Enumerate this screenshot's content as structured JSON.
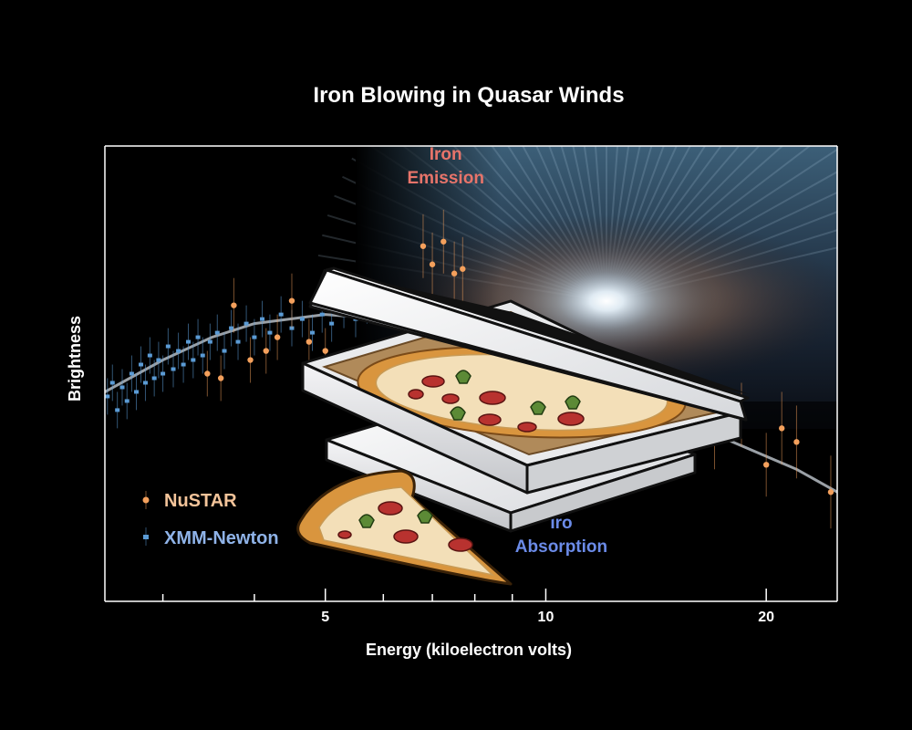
{
  "chart_data": {
    "type": "scatter",
    "title": "Iron Blowing in Quasar Winds",
    "xlabel": "Energy (kiloelectron volts)",
    "ylabel": "Brightness",
    "x_scale": "log",
    "xlim": [
      2.5,
      25
    ],
    "ylim": [
      0,
      1
    ],
    "x_ticks_labeled": [
      5,
      10,
      20
    ],
    "x_ticks_minor": [
      3,
      4,
      6,
      7,
      8,
      9
    ],
    "grid": false,
    "legend_position": "bottom-left",
    "series": [
      {
        "name": "NuSTAR",
        "color": "#f4a05c",
        "marker": "circle",
        "points": [
          {
            "x": 3.45,
            "y": 0.5,
            "err": 0.05
          },
          {
            "x": 3.6,
            "y": 0.49,
            "err": 0.05
          },
          {
            "x": 3.75,
            "y": 0.65,
            "err": 0.06
          },
          {
            "x": 3.95,
            "y": 0.53,
            "err": 0.05
          },
          {
            "x": 4.15,
            "y": 0.55,
            "err": 0.05
          },
          {
            "x": 4.3,
            "y": 0.58,
            "err": 0.05
          },
          {
            "x": 4.5,
            "y": 0.66,
            "err": 0.06
          },
          {
            "x": 4.75,
            "y": 0.57,
            "err": 0.05
          },
          {
            "x": 5.0,
            "y": 0.55,
            "err": 0.05
          },
          {
            "x": 6.8,
            "y": 0.78,
            "err": 0.07
          },
          {
            "x": 7.0,
            "y": 0.74,
            "err": 0.07
          },
          {
            "x": 7.25,
            "y": 0.79,
            "err": 0.07
          },
          {
            "x": 7.5,
            "y": 0.72,
            "err": 0.07
          },
          {
            "x": 7.7,
            "y": 0.73,
            "err": 0.07
          },
          {
            "x": 14.8,
            "y": 0.39,
            "err": 0.05
          },
          {
            "x": 17.0,
            "y": 0.35,
            "err": 0.06
          },
          {
            "x": 18.5,
            "y": 0.41,
            "err": 0.07
          },
          {
            "x": 20.0,
            "y": 0.3,
            "err": 0.07
          },
          {
            "x": 21.0,
            "y": 0.38,
            "err": 0.08
          },
          {
            "x": 22.0,
            "y": 0.35,
            "err": 0.08
          },
          {
            "x": 24.5,
            "y": 0.24,
            "err": 0.08
          }
        ]
      },
      {
        "name": "XMM-Newton",
        "color": "#5b9bd5",
        "marker": "square",
        "points": [
          {
            "x": 2.52,
            "y": 0.45,
            "err": 0.04
          },
          {
            "x": 2.56,
            "y": 0.48,
            "err": 0.04
          },
          {
            "x": 2.6,
            "y": 0.42,
            "err": 0.04
          },
          {
            "x": 2.64,
            "y": 0.47,
            "err": 0.04
          },
          {
            "x": 2.68,
            "y": 0.44,
            "err": 0.04
          },
          {
            "x": 2.72,
            "y": 0.5,
            "err": 0.04
          },
          {
            "x": 2.76,
            "y": 0.46,
            "err": 0.04
          },
          {
            "x": 2.8,
            "y": 0.52,
            "err": 0.04
          },
          {
            "x": 2.84,
            "y": 0.48,
            "err": 0.04
          },
          {
            "x": 2.88,
            "y": 0.54,
            "err": 0.04
          },
          {
            "x": 2.92,
            "y": 0.49,
            "err": 0.04
          },
          {
            "x": 2.96,
            "y": 0.53,
            "err": 0.04
          },
          {
            "x": 3.0,
            "y": 0.5,
            "err": 0.04
          },
          {
            "x": 3.05,
            "y": 0.56,
            "err": 0.04
          },
          {
            "x": 3.1,
            "y": 0.51,
            "err": 0.04
          },
          {
            "x": 3.15,
            "y": 0.55,
            "err": 0.04
          },
          {
            "x": 3.2,
            "y": 0.52,
            "err": 0.04
          },
          {
            "x": 3.25,
            "y": 0.57,
            "err": 0.04
          },
          {
            "x": 3.3,
            "y": 0.53,
            "err": 0.04
          },
          {
            "x": 3.35,
            "y": 0.58,
            "err": 0.04
          },
          {
            "x": 3.4,
            "y": 0.54,
            "err": 0.04
          },
          {
            "x": 3.48,
            "y": 0.57,
            "err": 0.04
          },
          {
            "x": 3.56,
            "y": 0.59,
            "err": 0.04
          },
          {
            "x": 3.64,
            "y": 0.55,
            "err": 0.04
          },
          {
            "x": 3.72,
            "y": 0.6,
            "err": 0.04
          },
          {
            "x": 3.8,
            "y": 0.57,
            "err": 0.04
          },
          {
            "x": 3.9,
            "y": 0.61,
            "err": 0.04
          },
          {
            "x": 4.0,
            "y": 0.58,
            "err": 0.04
          },
          {
            "x": 4.1,
            "y": 0.62,
            "err": 0.04
          },
          {
            "x": 4.2,
            "y": 0.59,
            "err": 0.04
          },
          {
            "x": 4.35,
            "y": 0.63,
            "err": 0.04
          },
          {
            "x": 4.5,
            "y": 0.6,
            "err": 0.04
          },
          {
            "x": 4.65,
            "y": 0.62,
            "err": 0.04
          },
          {
            "x": 4.8,
            "y": 0.59,
            "err": 0.04
          },
          {
            "x": 4.95,
            "y": 0.63,
            "err": 0.04
          },
          {
            "x": 5.1,
            "y": 0.61,
            "err": 0.04
          },
          {
            "x": 5.3,
            "y": 0.64,
            "err": 0.04
          },
          {
            "x": 5.5,
            "y": 0.62,
            "err": 0.04
          },
          {
            "x": 5.7,
            "y": 0.65,
            "err": 0.04
          }
        ]
      },
      {
        "name": "",
        "color": "#9aa0a6",
        "marker": "line",
        "points": [
          {
            "x": 2.5,
            "y": 0.46
          },
          {
            "x": 3.0,
            "y": 0.53
          },
          {
            "x": 3.5,
            "y": 0.58
          },
          {
            "x": 4.0,
            "y": 0.61
          },
          {
            "x": 5.0,
            "y": 0.63
          },
          {
            "x": 6.0,
            "y": 0.62
          },
          {
            "x": 8.0,
            "y": 0.56
          },
          {
            "x": 10.0,
            "y": 0.5
          },
          {
            "x": 14.0,
            "y": 0.42
          },
          {
            "x": 18.0,
            "y": 0.35
          },
          {
            "x": 22.0,
            "y": 0.29
          },
          {
            "x": 25.0,
            "y": 0.24
          }
        ]
      }
    ],
    "annotations": [
      {
        "text_lines": [
          "Iron",
          "Emission"
        ],
        "color": "#e8746a",
        "x": 7.3,
        "y": 0.97
      },
      {
        "text_lines": [
          "Iro",
          "Absorption"
        ],
        "color": "#6b8be8",
        "x": 10.5,
        "y": 0.16
      }
    ]
  },
  "background_image": "galaxy-quasar-wind-photo",
  "overlay_image": "pizza-box-and-slice-illustration"
}
